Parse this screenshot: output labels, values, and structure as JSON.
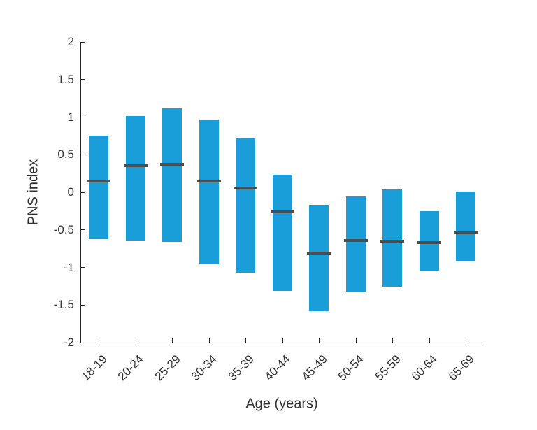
{
  "figure": {
    "xlabel": "Age (years)",
    "ylabel": "PNS index"
  },
  "chart_data": {
    "type": "bar",
    "subtype": "floating-range-bars-with-median-marker",
    "title": "",
    "xlabel": "Age (years)",
    "ylabel": "PNS index",
    "categories": [
      "18-19",
      "20-24",
      "25-29",
      "30-34",
      "35-39",
      "40-44",
      "45-49",
      "50-54",
      "55-59",
      "60-64",
      "65-69"
    ],
    "series": [
      {
        "name": "range_high",
        "values": [
          0.75,
          1.01,
          1.12,
          0.97,
          0.72,
          0.23,
          -0.17,
          -0.06,
          0.04,
          -0.25,
          0.01
        ]
      },
      {
        "name": "range_low",
        "values": [
          -0.62,
          -0.64,
          -0.66,
          -0.96,
          -1.07,
          -1.31,
          -1.58,
          -1.32,
          -1.26,
          -1.04,
          -0.91
        ]
      },
      {
        "name": "median",
        "values": [
          0.15,
          0.35,
          0.37,
          0.15,
          0.06,
          -0.26,
          -0.81,
          -0.64,
          -0.65,
          -0.67,
          -0.54
        ]
      }
    ],
    "ylim": [
      -2,
      2
    ],
    "ytick_values": [
      -2,
      -1.5,
      -1,
      -0.5,
      0,
      0.5,
      1,
      1.5,
      2
    ],
    "ytick_labels": [
      "-2",
      "-1.5",
      "-1",
      "-0.5",
      "0",
      "0.5",
      "1",
      "1.5",
      "2"
    ],
    "grid": false,
    "legend": "none",
    "colors": {
      "bar": "#1a9ed9",
      "median": "#4d4d4d",
      "axis": "#262626",
      "text": "#333333"
    }
  }
}
